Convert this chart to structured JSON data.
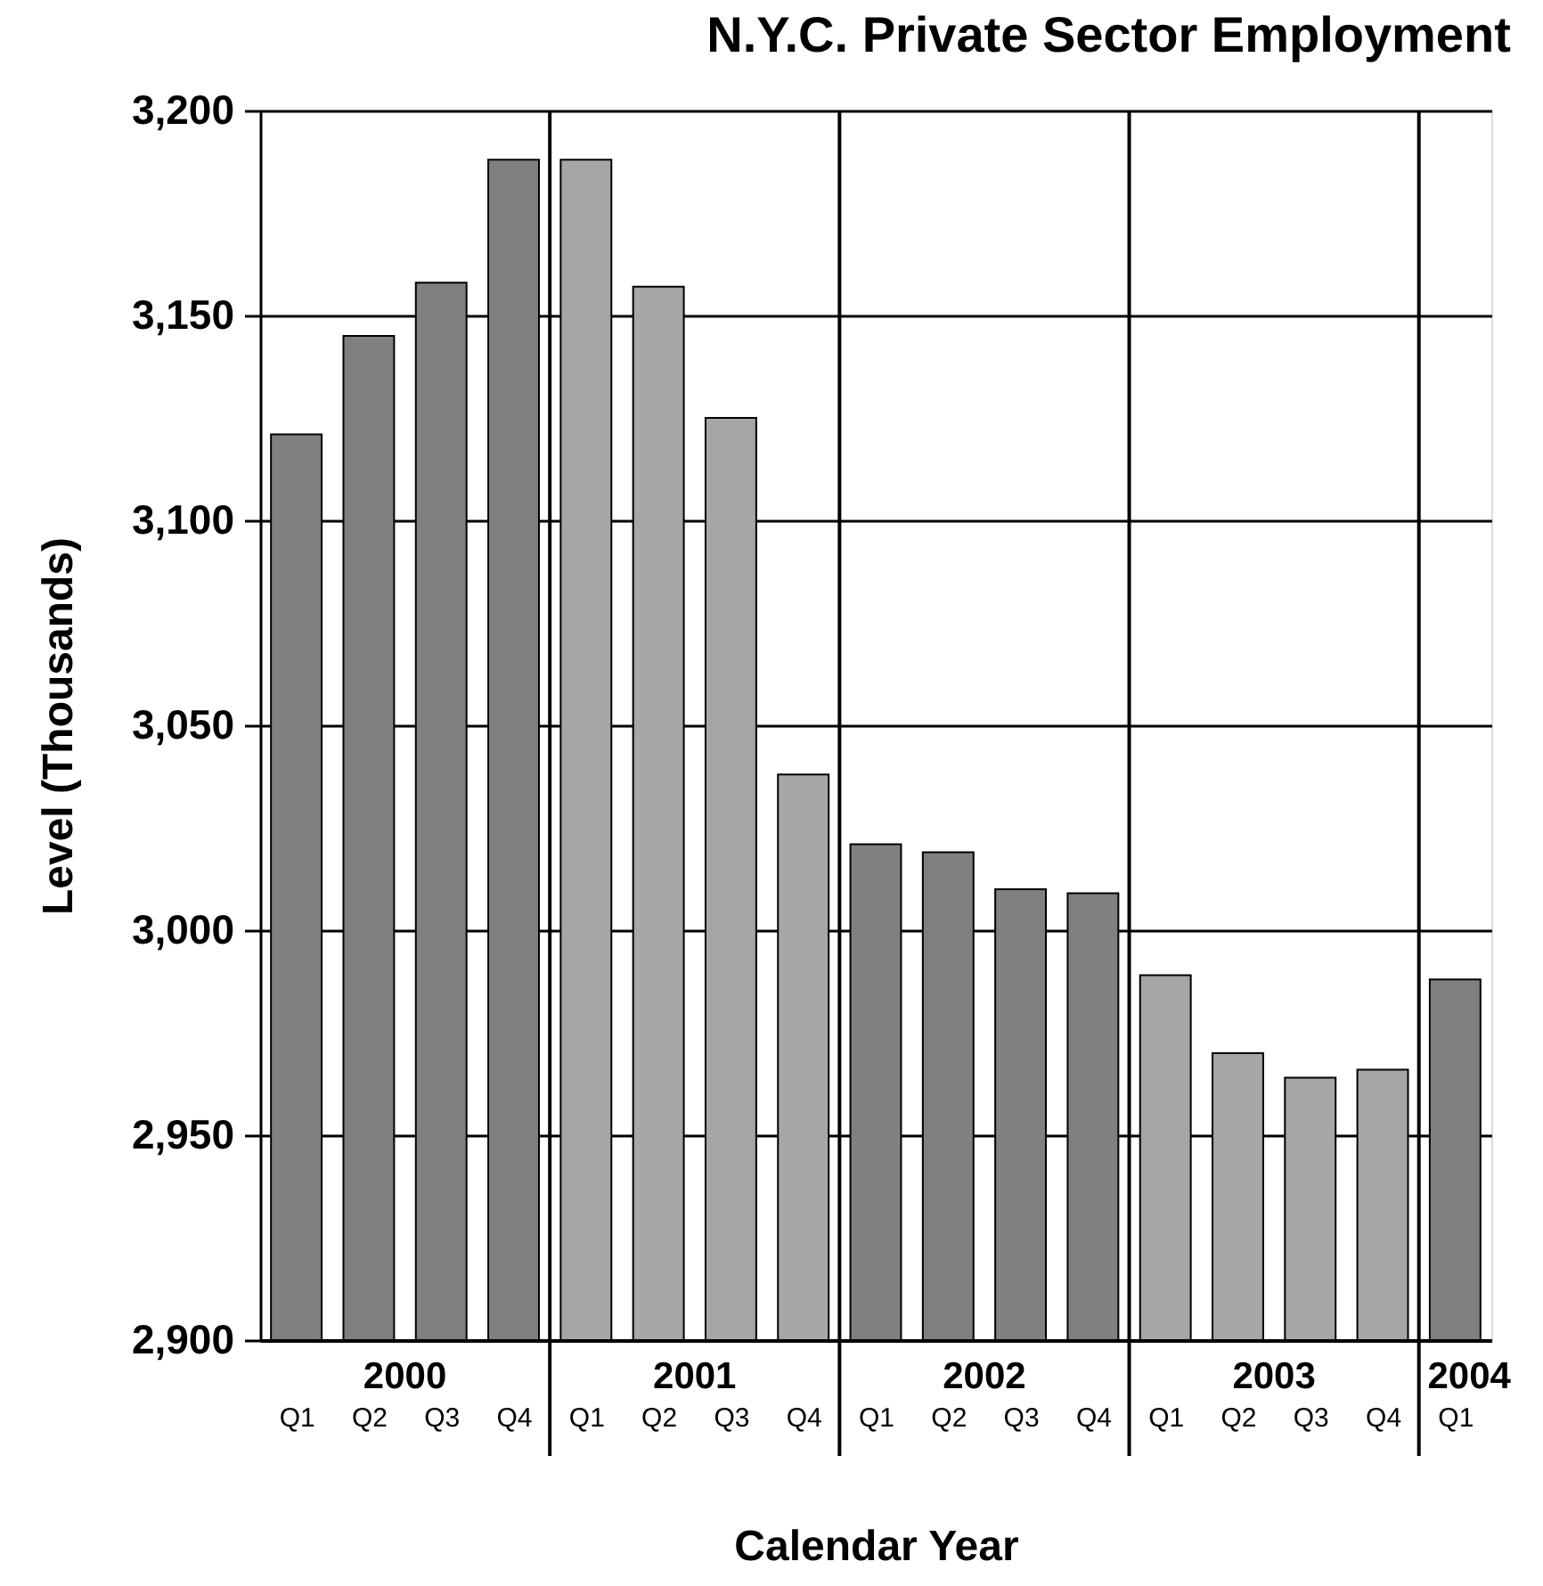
{
  "chart_data": {
    "type": "bar",
    "title": "N.Y.C. Private Sector Employment",
    "xlabel": "Calendar Year",
    "ylabel": "Level (Thousands)",
    "categories": [
      "Q1",
      "Q2",
      "Q3",
      "Q4",
      "Q1",
      "Q2",
      "Q3",
      "Q4",
      "Q1",
      "Q2",
      "Q3",
      "Q4",
      "Q1",
      "Q2",
      "Q3",
      "Q4",
      "Q1"
    ],
    "series": [
      {
        "name": "2000",
        "color": "#808080",
        "values": [
          3121,
          3145,
          3158,
          3188,
          null,
          null,
          null,
          null,
          null,
          null,
          null,
          null,
          null,
          null,
          null,
          null,
          null
        ]
      },
      {
        "name": "2001",
        "color": "#a6a6a6",
        "values": [
          null,
          null,
          null,
          null,
          3188,
          3157,
          3125,
          3038,
          null,
          null,
          null,
          null,
          null,
          null,
          null,
          null,
          null
        ]
      },
      {
        "name": "2002",
        "color": "#808080",
        "values": [
          null,
          null,
          null,
          null,
          null,
          null,
          null,
          null,
          3021,
          3019,
          3010,
          3009,
          null,
          null,
          null,
          null,
          null
        ]
      },
      {
        "name": "2003",
        "color": "#a6a6a6",
        "values": [
          null,
          null,
          null,
          null,
          null,
          null,
          null,
          null,
          null,
          null,
          null,
          null,
          2989,
          2970,
          2964,
          2966,
          null
        ]
      },
      {
        "name": "2004",
        "color": "#808080",
        "values": [
          null,
          null,
          null,
          null,
          null,
          null,
          null,
          null,
          null,
          null,
          null,
          null,
          null,
          null,
          null,
          null,
          2988
        ]
      }
    ],
    "ylim": [
      2900,
      3200
    ],
    "yticks": [
      {
        "value": 2900,
        "label": "2,900"
      },
      {
        "value": 2950,
        "label": "2,950"
      },
      {
        "value": 3000,
        "label": "3,000"
      },
      {
        "value": 3050,
        "label": "3,050"
      },
      {
        "value": 3100,
        "label": "3,100"
      },
      {
        "value": 3150,
        "label": "3,150"
      },
      {
        "value": 3200,
        "label": "3,200"
      }
    ],
    "grid": true
  }
}
